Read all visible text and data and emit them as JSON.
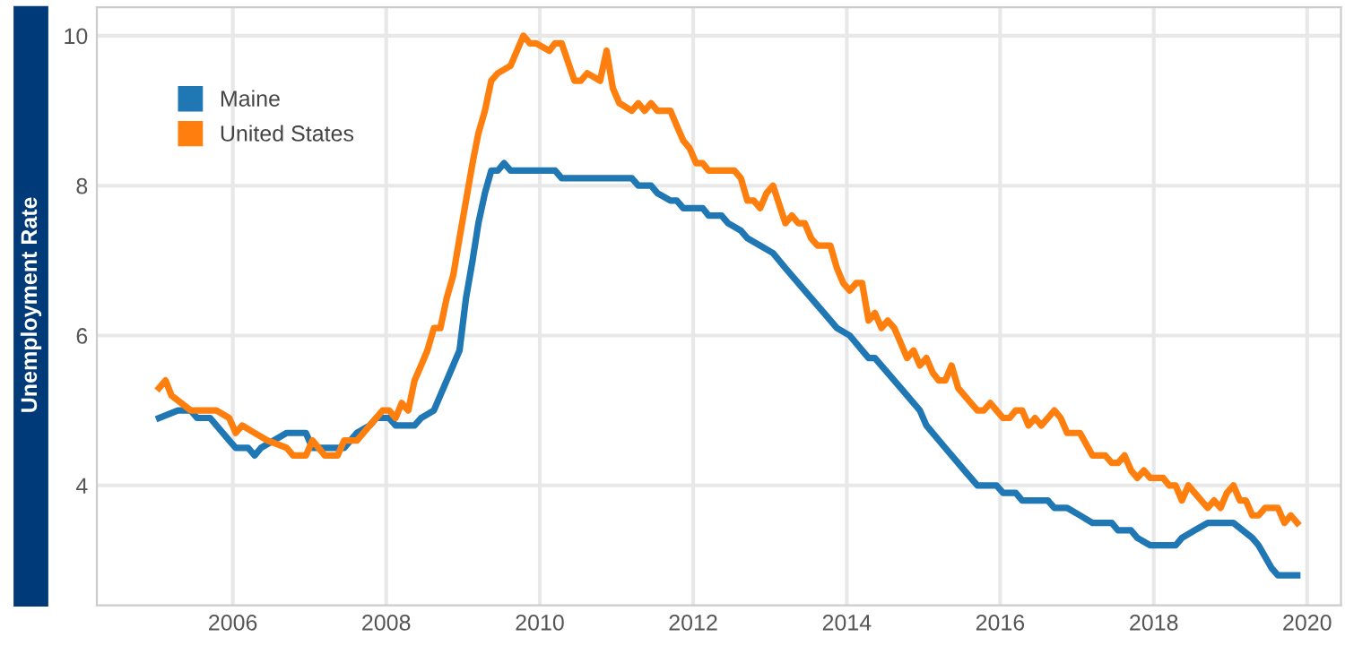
{
  "chart_data": {
    "type": "line",
    "ylabel": "Unemployment Rate",
    "xlim": [
      "2004-03-25",
      "2020-06-10"
    ],
    "ylim": [
      2.4,
      10.38
    ],
    "xticks": [
      "2006",
      "2008",
      "2010",
      "2012",
      "2014",
      "2016",
      "2018",
      "2020"
    ],
    "yticks": [
      4,
      6,
      8,
      10
    ],
    "grid": true,
    "legend": "top left",
    "marker": "none",
    "line_style": "solid",
    "series": [
      {
        "name": "Maine",
        "color": "#1f77b4",
        "x": [
          "2005-01",
          "2005-04",
          "2005-06",
          "2005-07",
          "2005-09",
          "2005-12",
          "2006-01",
          "2006-03",
          "2006-04",
          "2006-05",
          "2006-07",
          "2006-09",
          "2006-12",
          "2007-01",
          "2007-06",
          "2007-07",
          "2007-08",
          "2007-10",
          "2007-11",
          "2008-01",
          "2008-02",
          "2008-05",
          "2008-06",
          "2008-08",
          "2008-12",
          "2009-01",
          "2009-02",
          "2009-03",
          "2009-04",
          "2009-05",
          "2009-06",
          "2009-07",
          "2009-08",
          "2010-03",
          "2010-04",
          "2011-03",
          "2011-04",
          "2011-06",
          "2011-07",
          "2011-09",
          "2011-10",
          "2011-11",
          "2012-02",
          "2012-03",
          "2012-05",
          "2012-06",
          "2012-08",
          "2012-09",
          "2012-11",
          "2013-01",
          "2013-03",
          "2013-06",
          "2013-09",
          "2013-11",
          "2014-01",
          "2014-04",
          "2014-05",
          "2014-09",
          "2014-12",
          "2015-01",
          "2015-04",
          "2015-07",
          "2015-09",
          "2015-12",
          "2016-01",
          "2016-03",
          "2016-04",
          "2016-08",
          "2016-09",
          "2016-11",
          "2017-01",
          "2017-03",
          "2017-06",
          "2017-07",
          "2017-09",
          "2017-10",
          "2017-12",
          "2018-04",
          "2018-05",
          "2018-07",
          "2018-09",
          "2019-01",
          "2019-04",
          "2019-05",
          "2019-07",
          "2019-08",
          "2019-11"
        ],
        "values": [
          4.9,
          5.0,
          5.0,
          4.9,
          4.9,
          4.6,
          4.5,
          4.5,
          4.4,
          4.5,
          4.6,
          4.7,
          4.7,
          4.5,
          4.5,
          4.6,
          4.7,
          4.8,
          4.9,
          4.9,
          4.8,
          4.8,
          4.9,
          5.0,
          5.8,
          6.5,
          7.0,
          7.5,
          7.9,
          8.2,
          8.2,
          8.3,
          8.2,
          8.2,
          8.1,
          8.1,
          8.0,
          8.0,
          7.9,
          7.8,
          7.8,
          7.7,
          7.7,
          7.6,
          7.6,
          7.5,
          7.4,
          7.3,
          7.2,
          7.1,
          6.9,
          6.6,
          6.3,
          6.1,
          6.0,
          5.7,
          5.7,
          5.3,
          5.0,
          4.8,
          4.5,
          4.2,
          4.0,
          4.0,
          3.9,
          3.9,
          3.8,
          3.8,
          3.7,
          3.7,
          3.6,
          3.5,
          3.5,
          3.4,
          3.4,
          3.3,
          3.2,
          3.2,
          3.3,
          3.4,
          3.5,
          3.5,
          3.3,
          3.2,
          2.9,
          2.8,
          2.8
        ]
      },
      {
        "name": "United States",
        "color": "#ff7f0e",
        "x": [
          "2005-01",
          "2005-02",
          "2005-03",
          "2005-06",
          "2005-09",
          "2005-10",
          "2005-12",
          "2006-01",
          "2006-02",
          "2006-04",
          "2006-06",
          "2006-09",
          "2006-10",
          "2006-12",
          "2007-01",
          "2007-03",
          "2007-05",
          "2007-06",
          "2007-08",
          "2007-09",
          "2007-12",
          "2008-01",
          "2008-02",
          "2008-03",
          "2008-04",
          "2008-05",
          "2008-06",
          "2008-07",
          "2008-08",
          "2008-09",
          "2008-10",
          "2008-11",
          "2008-12",
          "2009-01",
          "2009-02",
          "2009-03",
          "2009-04",
          "2009-05",
          "2009-06",
          "2009-08",
          "2009-10",
          "2009-11",
          "2009-12",
          "2010-02",
          "2010-03",
          "2010-04",
          "2010-06",
          "2010-07",
          "2010-08",
          "2010-10",
          "2010-11",
          "2010-12",
          "2011-01",
          "2011-03",
          "2011-04",
          "2011-05",
          "2011-06",
          "2011-07",
          "2011-09",
          "2011-10",
          "2011-11",
          "2011-12",
          "2012-01",
          "2012-02",
          "2012-03",
          "2012-07",
          "2012-08",
          "2012-09",
          "2012-10",
          "2012-11",
          "2012-12",
          "2013-01",
          "2013-03",
          "2013-04",
          "2013-05",
          "2013-06",
          "2013-07",
          "2013-08",
          "2013-10",
          "2013-11",
          "2013-12",
          "2014-01",
          "2014-02",
          "2014-03",
          "2014-04",
          "2014-05",
          "2014-06",
          "2014-07",
          "2014-08",
          "2014-09",
          "2014-10",
          "2014-11",
          "2014-12",
          "2015-01",
          "2015-02",
          "2015-03",
          "2015-04",
          "2015-05",
          "2015-06",
          "2015-07",
          "2015-08",
          "2015-09",
          "2015-10",
          "2015-11",
          "2015-12",
          "2016-01",
          "2016-02",
          "2016-03",
          "2016-04",
          "2016-05",
          "2016-06",
          "2016-07",
          "2016-08",
          "2016-09",
          "2016-10",
          "2016-11",
          "2016-12",
          "2017-01",
          "2017-03",
          "2017-04",
          "2017-05",
          "2017-06",
          "2017-07",
          "2017-08",
          "2017-09",
          "2017-10",
          "2017-11",
          "2017-12",
          "2018-02",
          "2018-03",
          "2018-04",
          "2018-05",
          "2018-06",
          "2018-07",
          "2018-08",
          "2018-09",
          "2018-10",
          "2018-11",
          "2018-12",
          "2019-01",
          "2019-02",
          "2019-03",
          "2019-04",
          "2019-05",
          "2019-06",
          "2019-08",
          "2019-09",
          "2019-10",
          "2019-11"
        ],
        "values": [
          5.3,
          5.4,
          5.2,
          5.0,
          5.0,
          5.0,
          4.9,
          4.7,
          4.8,
          4.7,
          4.6,
          4.5,
          4.4,
          4.4,
          4.6,
          4.4,
          4.4,
          4.6,
          4.6,
          4.7,
          5.0,
          5.0,
          4.9,
          5.1,
          5.0,
          5.4,
          5.6,
          5.8,
          6.1,
          6.1,
          6.5,
          6.8,
          7.3,
          7.8,
          8.3,
          8.7,
          9.0,
          9.4,
          9.5,
          9.6,
          10.0,
          9.9,
          9.9,
          9.8,
          9.9,
          9.9,
          9.4,
          9.4,
          9.5,
          9.4,
          9.8,
          9.3,
          9.1,
          9.0,
          9.1,
          9.0,
          9.1,
          9.0,
          9.0,
          8.8,
          8.6,
          8.5,
          8.3,
          8.3,
          8.2,
          8.2,
          8.1,
          7.8,
          7.8,
          7.7,
          7.9,
          8.0,
          7.5,
          7.6,
          7.5,
          7.5,
          7.3,
          7.2,
          7.2,
          6.9,
          6.7,
          6.6,
          6.7,
          6.7,
          6.2,
          6.3,
          6.1,
          6.2,
          6.1,
          5.9,
          5.7,
          5.8,
          5.6,
          5.7,
          5.5,
          5.4,
          5.4,
          5.6,
          5.3,
          5.2,
          5.1,
          5.0,
          5.0,
          5.1,
          5.0,
          4.9,
          4.9,
          5.0,
          5.0,
          4.8,
          4.9,
          4.8,
          4.9,
          5.0,
          4.9,
          4.7,
          4.7,
          4.7,
          4.4,
          4.4,
          4.4,
          4.3,
          4.3,
          4.4,
          4.2,
          4.1,
          4.2,
          4.1,
          4.1,
          4.0,
          4.0,
          3.8,
          4.0,
          3.9,
          3.8,
          3.7,
          3.8,
          3.7,
          3.9,
          4.0,
          3.8,
          3.8,
          3.6,
          3.6,
          3.7,
          3.7,
          3.5,
          3.6,
          3.5
        ]
      }
    ]
  }
}
